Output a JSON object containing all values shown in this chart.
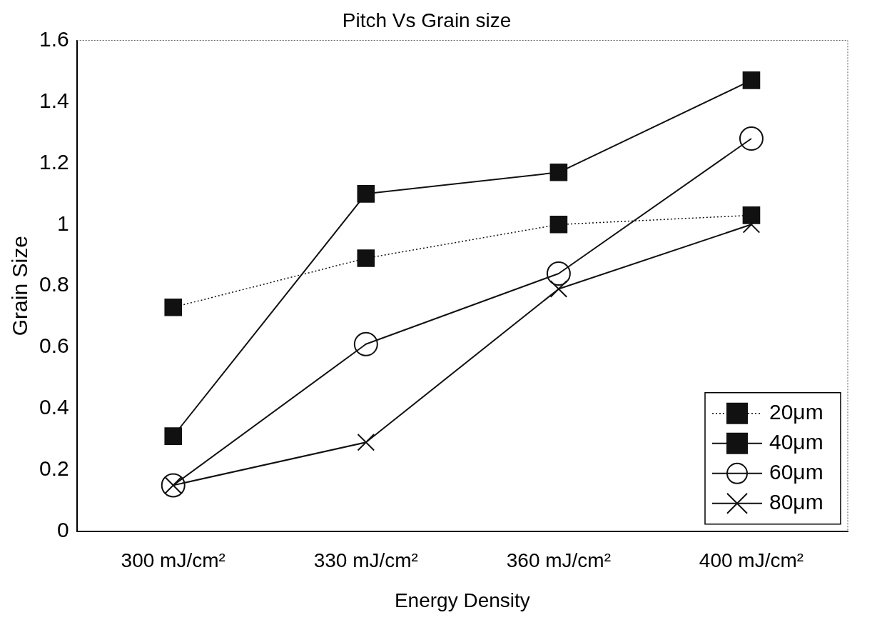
{
  "chart_data": {
    "type": "line",
    "title": "Pitch Vs Grain size",
    "xlabel": "Energy Density",
    "ylabel": "Grain Size",
    "categories": [
      "300 mJ/cm²",
      "330 mJ/cm²",
      "360 mJ/cm²",
      "400 mJ/cm²"
    ],
    "series": [
      {
        "name": "20μm",
        "color": "#111111",
        "values": [
          0.73,
          0.89,
          1.0,
          1.03
        ],
        "marker": "square",
        "line_style": "dotted"
      },
      {
        "name": "40μm",
        "color": "#111111",
        "values": [
          0.31,
          1.1,
          1.17,
          1.47
        ],
        "marker": "square",
        "line_style": "solid"
      },
      {
        "name": "60μm",
        "color": "#111111",
        "values": [
          0.15,
          0.61,
          0.84,
          1.28
        ],
        "marker": "circle",
        "line_style": "solid"
      },
      {
        "name": "80μm",
        "color": "#111111",
        "values": [
          0.15,
          0.29,
          0.79,
          1.0
        ],
        "marker": "cross",
        "line_style": "solid"
      }
    ],
    "ylim": [
      0,
      1.6
    ],
    "yticks": [
      0,
      0.2,
      0.4,
      0.6,
      0.8,
      1,
      1.2,
      1.4,
      1.6
    ],
    "grid": false,
    "legend": "bottom right"
  }
}
